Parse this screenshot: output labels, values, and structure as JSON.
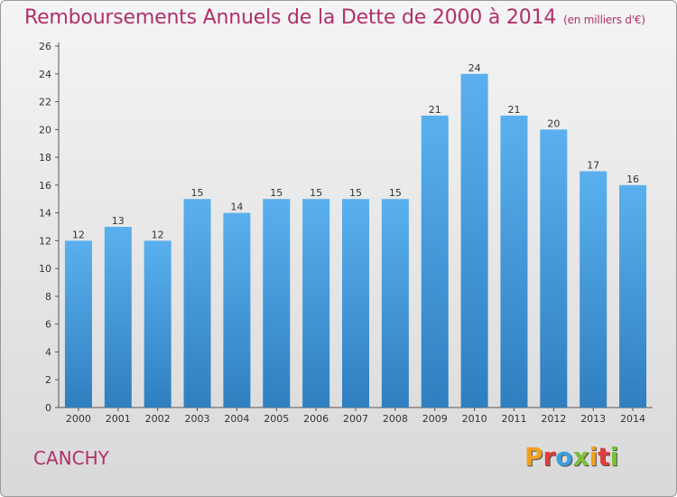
{
  "header": {
    "title": "Remboursements Annuels de la Dette de 2000 à 2014",
    "unit": "(en milliers d'€)"
  },
  "footer": {
    "commune": "CANCHY",
    "logo": "Proxiti"
  },
  "colors": {
    "bar_top": "#5ab0ee",
    "bar_bottom": "#2f7fc0",
    "title": "#b0306a",
    "axis": "#555555"
  },
  "chart_data": {
    "type": "bar",
    "title": "Remboursements Annuels de la Dette de 2000 à 2014",
    "subtitle": "(en milliers d'€)",
    "categories": [
      "2000",
      "2001",
      "2002",
      "2003",
      "2004",
      "2005",
      "2006",
      "2007",
      "2008",
      "2009",
      "2010",
      "2011",
      "2012",
      "2013",
      "2014"
    ],
    "values": [
      12,
      13,
      12,
      15,
      14,
      15,
      15,
      15,
      15,
      21,
      24,
      21,
      20,
      17,
      16
    ],
    "ylim": [
      0,
      26
    ],
    "yticks": [
      0,
      2,
      4,
      6,
      8,
      10,
      12,
      14,
      16,
      18,
      20,
      22,
      24,
      26
    ],
    "grid": false,
    "xlabel": "",
    "ylabel": ""
  }
}
